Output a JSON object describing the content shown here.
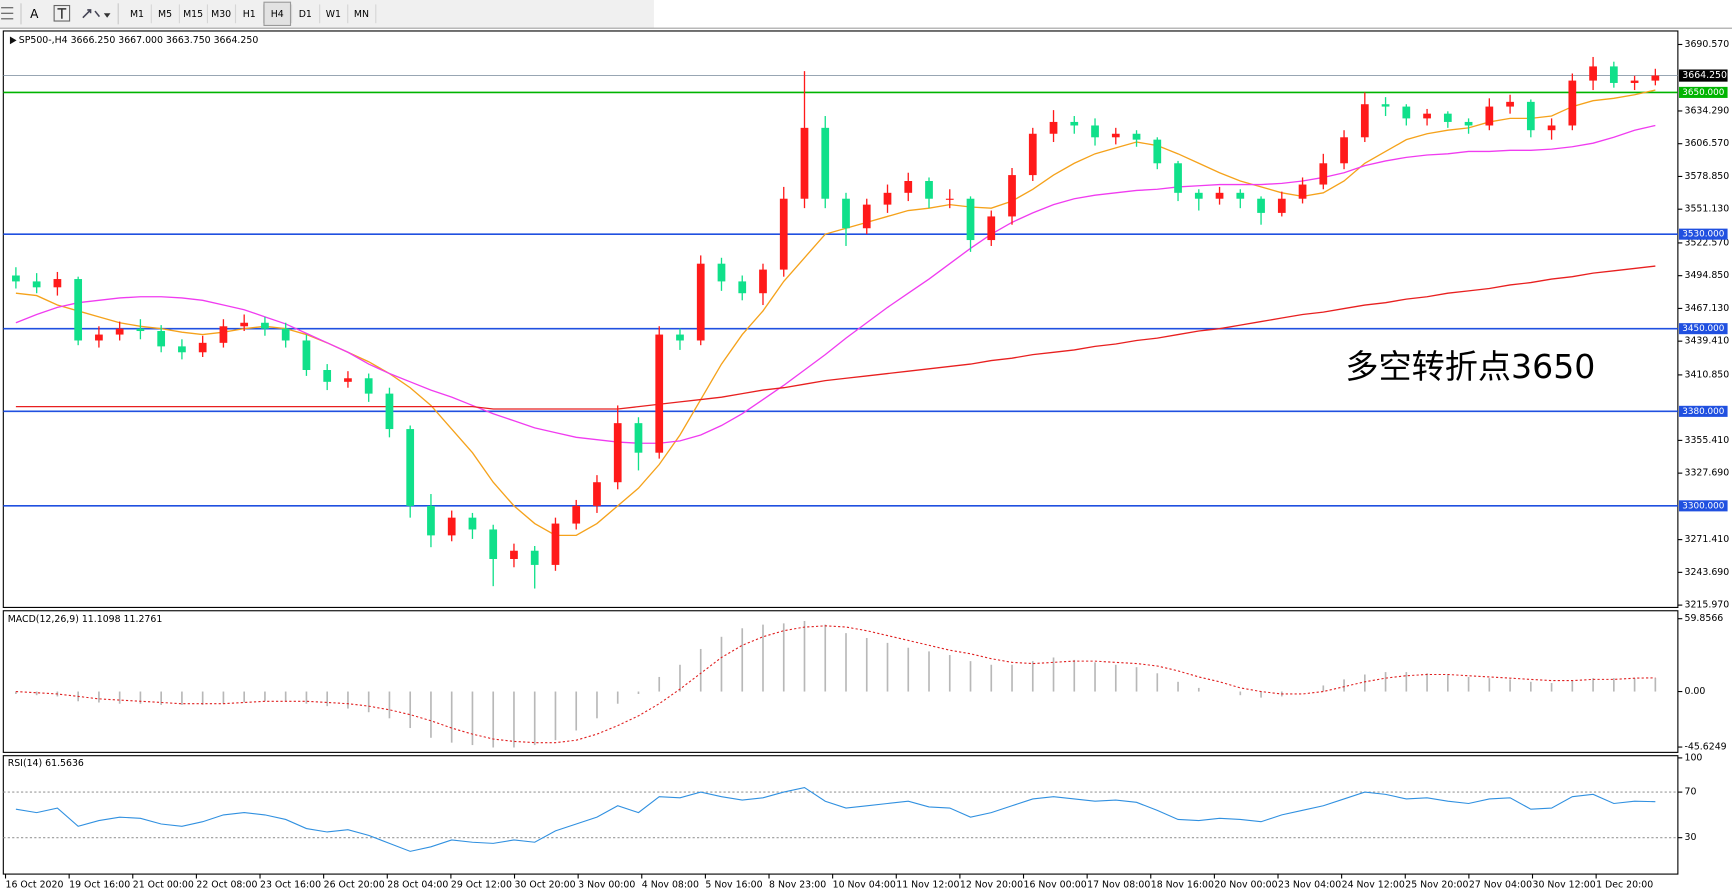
{
  "toolbar": {
    "text_tools": [
      "A"
    ],
    "timeframes": [
      "M1",
      "M5",
      "M15",
      "M30",
      "H1",
      "H4",
      "D1",
      "W1",
      "MN"
    ],
    "active_timeframe": 5
  },
  "chart_data": [
    {
      "type": "candlestick",
      "title": "SP500-,H4  3666.250 3667.000 3663.750 3664.250",
      "x_labels": [
        "16 Oct 2020",
        "19 Oct 16:00",
        "21 Oct 00:00",
        "22 Oct 08:00",
        "23 Oct 16:00",
        "26 Oct 20:00",
        "28 Oct 04:00",
        "29 Oct 12:00",
        "30 Oct 20:00",
        "3 Nov 00:00",
        "4 Nov 08:00",
        "5 Nov 16:00",
        "8 Nov 23:00",
        "10 Nov 04:00",
        "11 Nov 12:00",
        "12 Nov 20:00",
        "16 Nov 00:00",
        "17 Nov 08:00",
        "18 Nov 16:00",
        "20 Nov 00:00",
        "23 Nov 04:00",
        "24 Nov 12:00",
        "25 Nov 20:00",
        "27 Nov 04:00",
        "30 Nov 12:00",
        "1 Dec 20:00"
      ],
      "open": [
        3495,
        3490,
        3485,
        3492,
        3440,
        3445,
        3450,
        3448,
        3435,
        3430,
        3438,
        3452,
        3455,
        3450,
        3440,
        3415,
        3405,
        3408,
        3395,
        3365,
        3300,
        3275,
        3290,
        3280,
        3255,
        3262,
        3250,
        3285,
        3300,
        3320,
        3370,
        3345,
        3445,
        3440,
        3505,
        3490,
        3480,
        3500,
        3560,
        3620,
        3560,
        3535,
        3555,
        3565,
        3575,
        3560,
        3560,
        3525,
        3545,
        3580,
        3615,
        3625,
        3622,
        3612,
        3615,
        3610,
        3590,
        3565,
        3560,
        3565,
        3560,
        3548,
        3560,
        3572,
        3590,
        3612,
        3640,
        3638,
        3628,
        3632,
        3625,
        3622,
        3638,
        3642,
        3618,
        3622,
        3660,
        3672,
        3658,
        3660
      ],
      "high": [
        3502,
        3497,
        3498,
        3494,
        3452,
        3456,
        3458,
        3453,
        3441,
        3444,
        3458,
        3462,
        3460,
        3455,
        3445,
        3420,
        3414,
        3412,
        3400,
        3368,
        3310,
        3296,
        3294,
        3284,
        3268,
        3266,
        3290,
        3305,
        3326,
        3385,
        3375,
        3452,
        3450,
        3512,
        3510,
        3495,
        3505,
        3570,
        3668,
        3630,
        3565,
        3560,
        3572,
        3582,
        3578,
        3568,
        3562,
        3550,
        3586,
        3620,
        3635,
        3630,
        3628,
        3620,
        3618,
        3612,
        3592,
        3568,
        3570,
        3568,
        3562,
        3566,
        3578,
        3598,
        3618,
        3650,
        3646,
        3640,
        3636,
        3634,
        3628,
        3645,
        3648,
        3644,
        3628,
        3666,
        3680,
        3676,
        3664,
        3670
      ],
      "low": [
        3484,
        3480,
        3478,
        3436,
        3434,
        3440,
        3441,
        3430,
        3424,
        3426,
        3434,
        3448,
        3444,
        3434,
        3410,
        3398,
        3400,
        3388,
        3358,
        3290,
        3265,
        3270,
        3272,
        3232,
        3248,
        3230,
        3245,
        3280,
        3294,
        3314,
        3330,
        3340,
        3432,
        3436,
        3482,
        3474,
        3470,
        3494,
        3552,
        3552,
        3520,
        3530,
        3548,
        3558,
        3552,
        3552,
        3515,
        3520,
        3538,
        3575,
        3608,
        3615,
        3605,
        3606,
        3604,
        3585,
        3558,
        3550,
        3555,
        3552,
        3538,
        3545,
        3556,
        3568,
        3585,
        3608,
        3630,
        3622,
        3622,
        3620,
        3615,
        3618,
        3632,
        3612,
        3610,
        3618,
        3652,
        3654,
        3652,
        3656
      ],
      "close": [
        3490,
        3485,
        3492,
        3440,
        3445,
        3450,
        3448,
        3435,
        3430,
        3438,
        3452,
        3455,
        3450,
        3440,
        3415,
        3405,
        3408,
        3395,
        3365,
        3300,
        3275,
        3290,
        3280,
        3255,
        3262,
        3250,
        3285,
        3300,
        3320,
        3370,
        3345,
        3445,
        3440,
        3505,
        3490,
        3480,
        3500,
        3560,
        3620,
        3560,
        3535,
        3555,
        3565,
        3575,
        3560,
        3560,
        3525,
        3545,
        3580,
        3615,
        3625,
        3622,
        3612,
        3615,
        3610,
        3590,
        3565,
        3560,
        3565,
        3560,
        3548,
        3560,
        3572,
        3590,
        3612,
        3640,
        3638,
        3628,
        3632,
        3625,
        3622,
        3638,
        3642,
        3618,
        3622,
        3660,
        3672,
        3658,
        3660,
        3664.25
      ],
      "up_color": "#ff1a1a",
      "down_color": "#10e08a",
      "lines": [
        {
          "color": "#f5a21b",
          "values": [
            3480,
            3478,
            3470,
            3465,
            3460,
            3455,
            3452,
            3450,
            3447,
            3445,
            3447,
            3450,
            3452,
            3450,
            3445,
            3438,
            3430,
            3422,
            3412,
            3400,
            3385,
            3365,
            3345,
            3320,
            3300,
            3285,
            3275,
            3275,
            3285,
            3300,
            3315,
            3335,
            3360,
            3390,
            3420,
            3445,
            3465,
            3490,
            3510,
            3530,
            3535,
            3540,
            3545,
            3550,
            3552,
            3555,
            3553,
            3552,
            3558,
            3568,
            3580,
            3590,
            3598,
            3603,
            3608,
            3605,
            3598,
            3590,
            3582,
            3575,
            3570,
            3565,
            3562,
            3565,
            3575,
            3590,
            3600,
            3610,
            3615,
            3618,
            3620,
            3625,
            3628,
            3628,
            3630,
            3638,
            3643,
            3645,
            3648,
            3652
          ]
        },
        {
          "color": "#f03cf0",
          "values": [
            3455,
            3462,
            3468,
            3472,
            3474,
            3476,
            3477,
            3477,
            3476,
            3474,
            3470,
            3466,
            3460,
            3454,
            3446,
            3438,
            3430,
            3420,
            3412,
            3405,
            3398,
            3392,
            3385,
            3378,
            3372,
            3366,
            3362,
            3358,
            3356,
            3354,
            3353,
            3353,
            3355,
            3360,
            3368,
            3378,
            3390,
            3402,
            3415,
            3428,
            3442,
            3455,
            3468,
            3480,
            3492,
            3505,
            3518,
            3530,
            3540,
            3548,
            3555,
            3560,
            3563,
            3565,
            3567,
            3568,
            3570,
            3571,
            3572,
            3572,
            3572,
            3573,
            3575,
            3578,
            3582,
            3588,
            3592,
            3595,
            3597,
            3598,
            3600,
            3600,
            3601,
            3601,
            3602,
            3604,
            3607,
            3612,
            3618,
            3622
          ]
        },
        {
          "color": "#e82020",
          "values": [
            3384,
            3384,
            3384,
            3384,
            3384,
            3384,
            3384,
            3384,
            3384,
            3384,
            3384,
            3384,
            3384,
            3384,
            3384,
            3384,
            3384,
            3384,
            3384,
            3384,
            3384,
            3384,
            3384,
            3382,
            3382,
            3382,
            3382,
            3382,
            3382,
            3382,
            3384,
            3386,
            3388,
            3390,
            3392,
            3395,
            3398,
            3400,
            3403,
            3406,
            3408,
            3410,
            3412,
            3414,
            3416,
            3418,
            3420,
            3423,
            3425,
            3428,
            3430,
            3432,
            3435,
            3437,
            3440,
            3442,
            3445,
            3448,
            3450,
            3453,
            3456,
            3459,
            3462,
            3464,
            3467,
            3470,
            3472,
            3475,
            3477,
            3480,
            3482,
            3484,
            3487,
            3489,
            3492,
            3494,
            3497,
            3499,
            3501,
            3503
          ]
        }
      ],
      "ylim": [
        3214,
        3702
      ],
      "yticks": [
        {
          "value": 3690.57,
          "label": "3690.570"
        },
        {
          "value": 3634.29,
          "label": "3634.290"
        },
        {
          "value": 3606.57,
          "label": "3606.570"
        },
        {
          "value": 3578.85,
          "label": "3578.850"
        },
        {
          "value": 3551.13,
          "label": "3551.130"
        },
        {
          "value": 3522.57,
          "label": "3522.570"
        },
        {
          "value": 3494.85,
          "label": "3494.850"
        },
        {
          "value": 3467.13,
          "label": "3467.130"
        },
        {
          "value": 3439.41,
          "label": "3439.410"
        },
        {
          "value": 3410.85,
          "label": "3410.850"
        },
        {
          "value": 3355.41,
          "label": "3355.410"
        },
        {
          "value": 3327.69,
          "label": "3327.690"
        },
        {
          "value": 3271.41,
          "label": "3271.410"
        },
        {
          "value": 3243.69,
          "label": "3243.690"
        },
        {
          "value": 3215.97,
          "label": "3215.970"
        }
      ],
      "levels": [
        {
          "value": 3650,
          "label": "3650.000",
          "color": "#00b400"
        },
        {
          "value": 3530,
          "label": "3530.000",
          "color": "#2050e0"
        },
        {
          "value": 3450,
          "label": "3450.000",
          "color": "#2050e0"
        },
        {
          "value": 3380,
          "label": "3380.000",
          "color": "#2050e0"
        },
        {
          "value": 3300,
          "label": "3300.000",
          "color": "#2050e0"
        }
      ],
      "price_line": {
        "value": 3664.25,
        "label": "3664.250",
        "color": "#000000"
      },
      "annotation": "多空转折点3650",
      "annotation_color": "#e01010"
    },
    {
      "type": "macd",
      "title": "MACD(12,26,9) 11.1098 11.2761",
      "histogram": [
        -2,
        -3,
        -4,
        -8,
        -9,
        -10,
        -10,
        -11,
        -11,
        -11,
        -10,
        -9,
        -8,
        -8,
        -10,
        -12,
        -14,
        -17,
        -22,
        -30,
        -38,
        -42,
        -44,
        -46,
        -46,
        -44,
        -40,
        -32,
        -22,
        -10,
        -2,
        12,
        22,
        35,
        45,
        52,
        55,
        56,
        58,
        55,
        48,
        44,
        40,
        36,
        33,
        30,
        25,
        22,
        22,
        25,
        28,
        26,
        24,
        22,
        20,
        15,
        8,
        3,
        0,
        -3,
        -5,
        -4,
        0,
        5,
        10,
        14,
        16,
        16,
        15,
        14,
        12,
        11,
        10,
        8,
        7,
        9,
        11,
        11,
        11,
        11.1098
      ],
      "signal": [
        0,
        -1,
        -2,
        -4,
        -6,
        -7,
        -8,
        -9,
        -10,
        -10,
        -10,
        -9,
        -8,
        -8,
        -8,
        -9,
        -10,
        -12,
        -15,
        -19,
        -24,
        -30,
        -35,
        -39,
        -41,
        -42,
        -42,
        -40,
        -35,
        -28,
        -20,
        -10,
        2,
        15,
        28,
        38,
        45,
        50,
        53,
        54,
        53,
        50,
        46,
        42,
        38,
        34,
        31,
        27,
        24,
        23,
        24,
        25,
        25,
        24,
        23,
        21,
        17,
        12,
        8,
        3,
        0,
        -2,
        -2,
        0,
        4,
        8,
        11,
        13,
        14,
        14,
        13,
        12,
        11,
        10,
        9,
        9,
        10,
        10,
        11,
        11.2761
      ],
      "bar_color": "#b8b8b8",
      "signal_color": "#e02020",
      "ylim": [
        -50,
        66.4
      ],
      "yticks": [
        59.8566,
        {
          "value": 0,
          "label": "0.00"
        },
        -45.6249
      ]
    },
    {
      "type": "rsi",
      "title": "RSI(14) 61.5636",
      "values": [
        55,
        52,
        56,
        40,
        45,
        48,
        47,
        42,
        40,
        44,
        50,
        52,
        50,
        46,
        38,
        35,
        37,
        32,
        25,
        18,
        22,
        28,
        26,
        25,
        28,
        26,
        36,
        42,
        48,
        58,
        52,
        66,
        65,
        70,
        66,
        63,
        65,
        70,
        74,
        62,
        56,
        58,
        60,
        62,
        57,
        56,
        48,
        52,
        58,
        64,
        66,
        64,
        62,
        63,
        61,
        54,
        46,
        45,
        47,
        46,
        44,
        50,
        54,
        58,
        64,
        70,
        68,
        64,
        65,
        62,
        60,
        64,
        65,
        55,
        56,
        66,
        68,
        60,
        62,
        61.5636
      ],
      "color": "#3090e0",
      "levels": [
        70,
        30
      ],
      "ylim": [
        0,
        100
      ],
      "yticks": [
        100,
        70,
        30
      ]
    }
  ]
}
